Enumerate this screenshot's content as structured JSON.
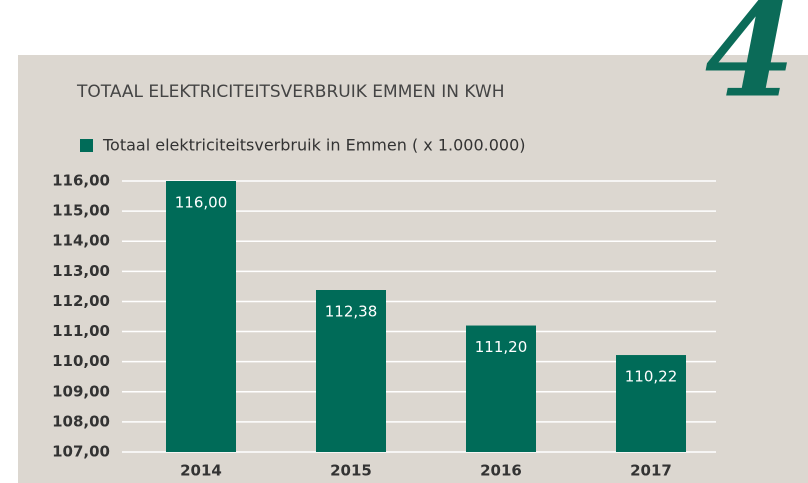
{
  "chart_data": {
    "type": "bar",
    "title": "TOTAAL ELEKTRICITEITSVERBRUIK EMMEN IN KWH",
    "annotation": "4",
    "categories": [
      "2014",
      "2015",
      "2016",
      "2017"
    ],
    "series": [
      {
        "name": "Totaal elektriciteitsverbruik in Emmen ( x 1.000.000)",
        "color": "#006b58",
        "values": [
          116.0,
          112.38,
          111.2,
          110.22
        ],
        "value_labels": [
          "116,00",
          "112,38",
          "111,20",
          "110,22"
        ]
      }
    ],
    "ylim": [
      107,
      116
    ],
    "yticks": [
      {
        "value": 107,
        "label": "107,00"
      },
      {
        "value": 108,
        "label": "108,00"
      },
      {
        "value": 109,
        "label": "109,00"
      },
      {
        "value": 110,
        "label": "110,00"
      },
      {
        "value": 111,
        "label": "111,00"
      },
      {
        "value": 112,
        "label": "112,00"
      },
      {
        "value": 113,
        "label": "113,00"
      },
      {
        "value": 114,
        "label": "114,00"
      },
      {
        "value": 115,
        "label": "115,00"
      },
      {
        "value": 116,
        "label": "116,00"
      }
    ],
    "grid": true,
    "legend": "top"
  }
}
